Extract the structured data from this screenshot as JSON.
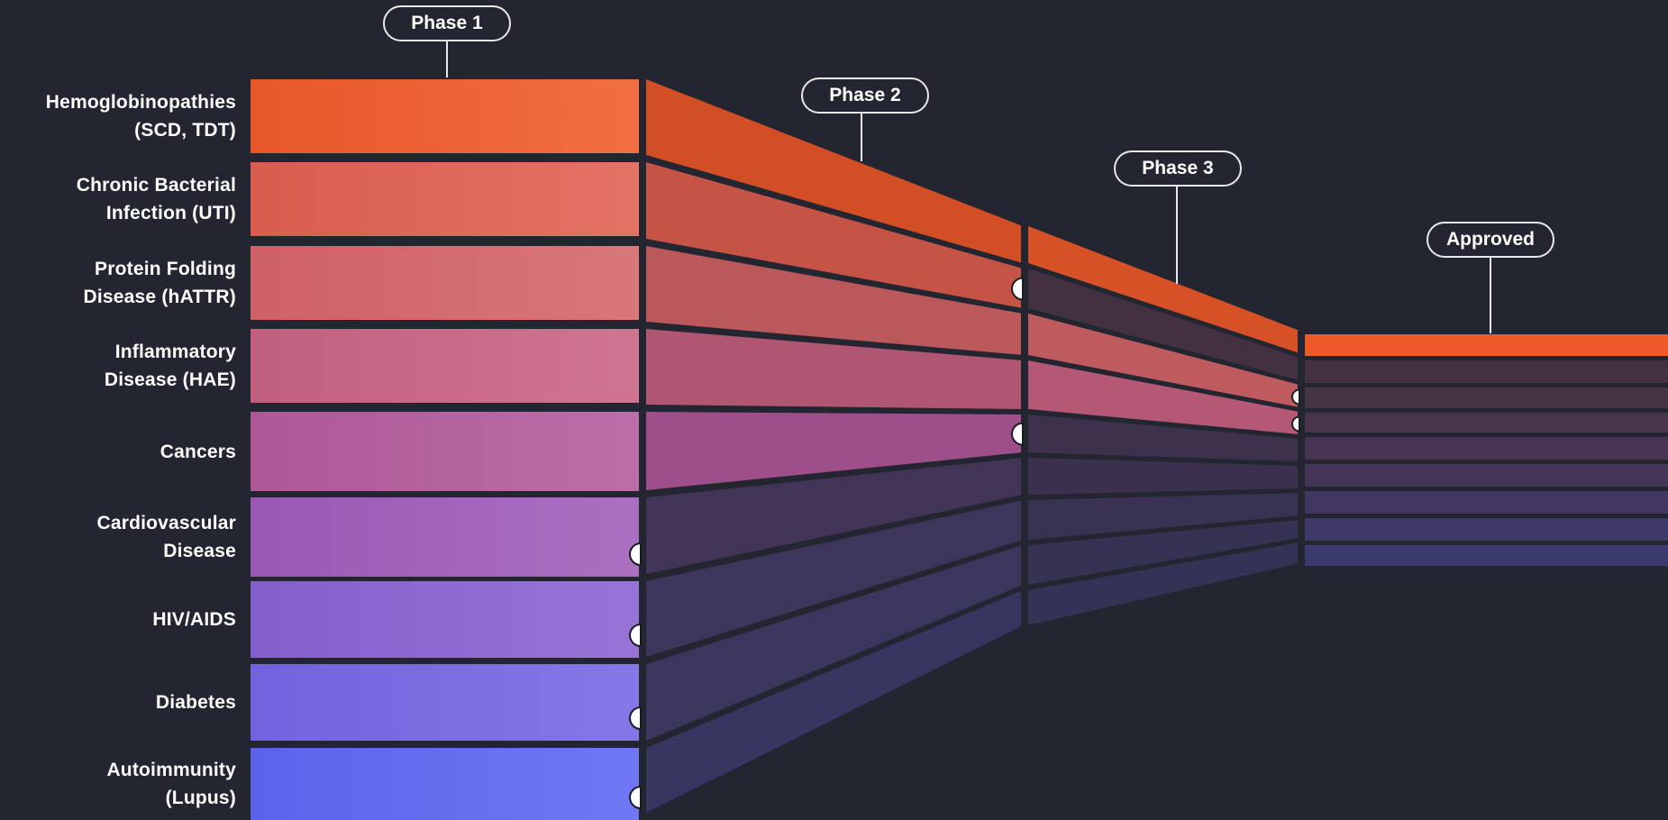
{
  "phases": [
    {
      "label": "Phase 1"
    },
    {
      "label": "Phase 2"
    },
    {
      "label": "Phase 3"
    },
    {
      "label": "Approved"
    }
  ],
  "rows": [
    {
      "line1": "Hemoglobinopathies",
      "line2": "(SCD, TDT)",
      "color": "#ef5a2a",
      "furthest_stage": "Approved"
    },
    {
      "line1": "Chronic Bacterial",
      "line2": "Infection (UTI)",
      "color": "#e06050",
      "furthest_stage": "Phase 2"
    },
    {
      "line1": "Protein Folding",
      "line2": "Disease (hATTR)",
      "color": "#d46468",
      "furthest_stage": "Phase 3"
    },
    {
      "line1": "Inflammatory",
      "line2": "Disease (HAE)",
      "color": "#c86282",
      "furthest_stage": "Phase 3"
    },
    {
      "line1": "Cancers",
      "line2": "",
      "color": "#b35a9c",
      "furthest_stage": "Phase 2"
    },
    {
      "line1": "Cardiovascular",
      "line2": "Disease",
      "color": "#9e5cb9",
      "furthest_stage": "Phase 1"
    },
    {
      "line1": "HIV/AIDS",
      "line2": "",
      "color": "#8862d2",
      "furthest_stage": "Phase 1"
    },
    {
      "line1": "Diabetes",
      "line2": "",
      "color": "#7466e4",
      "furthest_stage": "Phase 1"
    },
    {
      "line1": "Autoimmunity",
      "line2": "(Lupus)",
      "color": "#5e66f2",
      "furthest_stage": "Phase 1"
    }
  ],
  "colors": {
    "background": "#232631",
    "gap": "#232631",
    "orange_accent": "#ef5a2a",
    "dim_band": "#2e2b40"
  }
}
